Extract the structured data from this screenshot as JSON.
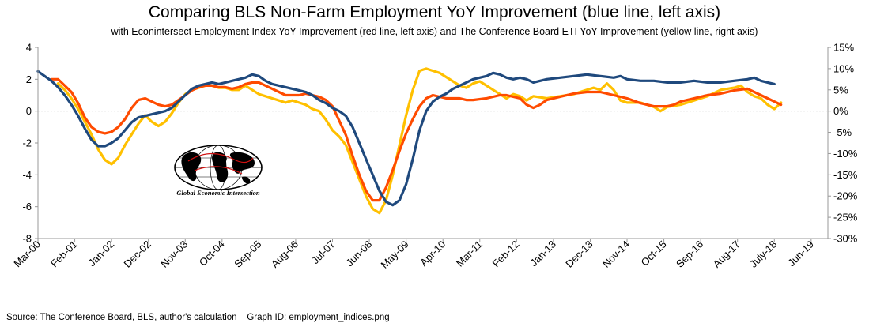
{
  "chart_data": {
    "type": "line",
    "title": "Comparing BLS Non-Farm Employment YoY Improvement (blue line, left axis)",
    "subtitle": "with Econintersect Employment Index YoY Improvement (red line, left axis) and The Conference Board ETI YoY Improvement (yellow line, right axis)",
    "x_tick_labels": [
      "Mar-00",
      "Feb-01",
      "Jan-02",
      "Dec-02",
      "Nov-03",
      "Oct-04",
      "Sep-05",
      "Aug-06",
      "Jul-07",
      "Jun-08",
      "May-09",
      "Apr-10",
      "Mar-11",
      "Feb-12",
      "Jan-13",
      "Dec-13",
      "Nov-14",
      "Oct-15",
      "Sep-16",
      "Aug-17",
      "July-18",
      "Jun-19"
    ],
    "y_left": {
      "ticks": [
        "4",
        "2",
        "0",
        "-2",
        "-4",
        "-6",
        "-8"
      ],
      "lim": [
        -8,
        4
      ]
    },
    "y_right": {
      "ticks": [
        "15%",
        "10%",
        "5%",
        "0%",
        "-5%",
        "-10%",
        "-15%",
        "-20%",
        "-25%",
        "-30%"
      ],
      "lim": [
        -30,
        15
      ]
    },
    "grid": false,
    "zero_line": "dashed",
    "series": [
      {
        "name": "BLS Non-Farm Employment YoY Improvement",
        "axis": "left",
        "color": "#1f497d",
        "points": [
          [
            0,
            2.5
          ],
          [
            2,
            2.2
          ],
          [
            4,
            1.9
          ],
          [
            6,
            1.5
          ],
          [
            8,
            1.0
          ],
          [
            10,
            0.4
          ],
          [
            12,
            -0.3
          ],
          [
            14,
            -1.1
          ],
          [
            16,
            -1.8
          ],
          [
            18,
            -2.2
          ],
          [
            20,
            -2.2
          ],
          [
            22,
            -2.0
          ],
          [
            24,
            -1.7
          ],
          [
            26,
            -1.2
          ],
          [
            28,
            -0.7
          ],
          [
            30,
            -0.4
          ],
          [
            32,
            -0.3
          ],
          [
            34,
            -0.2
          ],
          [
            36,
            -0.1
          ],
          [
            38,
            0.0
          ],
          [
            40,
            0.2
          ],
          [
            42,
            0.6
          ],
          [
            44,
            1.0
          ],
          [
            46,
            1.4
          ],
          [
            48,
            1.6
          ],
          [
            50,
            1.7
          ],
          [
            52,
            1.8
          ],
          [
            54,
            1.7
          ],
          [
            56,
            1.8
          ],
          [
            58,
            1.9
          ],
          [
            60,
            2.0
          ],
          [
            62,
            2.1
          ],
          [
            64,
            2.3
          ],
          [
            66,
            2.2
          ],
          [
            68,
            1.9
          ],
          [
            70,
            1.7
          ],
          [
            72,
            1.6
          ],
          [
            74,
            1.5
          ],
          [
            76,
            1.4
          ],
          [
            78,
            1.3
          ],
          [
            80,
            1.2
          ],
          [
            82,
            1.0
          ],
          [
            84,
            0.7
          ],
          [
            86,
            0.5
          ],
          [
            88,
            0.2
          ],
          [
            90,
            0.0
          ],
          [
            92,
            -0.3
          ],
          [
            94,
            -1.0
          ],
          [
            96,
            -2.0
          ],
          [
            98,
            -3.0
          ],
          [
            100,
            -4.0
          ],
          [
            102,
            -5.0
          ],
          [
            104,
            -5.7
          ],
          [
            106,
            -5.9
          ],
          [
            108,
            -5.6
          ],
          [
            110,
            -4.6
          ],
          [
            112,
            -3.0
          ],
          [
            114,
            -1.2
          ],
          [
            116,
            0.0
          ],
          [
            118,
            0.6
          ],
          [
            120,
            0.9
          ],
          [
            122,
            1.1
          ],
          [
            124,
            1.4
          ],
          [
            126,
            1.6
          ],
          [
            128,
            1.8
          ],
          [
            130,
            2.0
          ],
          [
            134,
            2.2
          ],
          [
            136,
            2.4
          ],
          [
            138,
            2.3
          ],
          [
            140,
            2.1
          ],
          [
            142,
            2.0
          ],
          [
            144,
            2.1
          ],
          [
            146,
            2.0
          ],
          [
            148,
            1.8
          ],
          [
            152,
            2.0
          ],
          [
            156,
            2.1
          ],
          [
            160,
            2.2
          ],
          [
            164,
            2.3
          ],
          [
            168,
            2.2
          ],
          [
            172,
            2.1
          ],
          [
            174,
            2.2
          ],
          [
            176,
            2.0
          ],
          [
            180,
            1.9
          ],
          [
            184,
            1.9
          ],
          [
            188,
            1.8
          ],
          [
            192,
            1.8
          ],
          [
            196,
            1.9
          ],
          [
            200,
            1.8
          ],
          [
            204,
            1.8
          ],
          [
            208,
            1.9
          ],
          [
            212,
            2.0
          ],
          [
            214,
            2.1
          ],
          [
            216,
            1.9
          ],
          [
            218,
            1.8
          ],
          [
            220,
            1.7
          ]
        ]
      },
      {
        "name": "Econintersect Employment Index YoY Improvement",
        "axis": "left",
        "color": "#ff4b00",
        "points": [
          [
            4,
            2.0
          ],
          [
            6,
            2.0
          ],
          [
            8,
            1.6
          ],
          [
            10,
            1.2
          ],
          [
            12,
            0.5
          ],
          [
            14,
            -0.4
          ],
          [
            16,
            -1.0
          ],
          [
            18,
            -1.3
          ],
          [
            20,
            -1.4
          ],
          [
            22,
            -1.3
          ],
          [
            24,
            -1.0
          ],
          [
            26,
            -0.5
          ],
          [
            28,
            0.2
          ],
          [
            30,
            0.7
          ],
          [
            32,
            0.8
          ],
          [
            34,
            0.6
          ],
          [
            36,
            0.4
          ],
          [
            38,
            0.3
          ],
          [
            40,
            0.4
          ],
          [
            42,
            0.7
          ],
          [
            44,
            1.0
          ],
          [
            46,
            1.3
          ],
          [
            48,
            1.5
          ],
          [
            50,
            1.6
          ],
          [
            52,
            1.6
          ],
          [
            54,
            1.5
          ],
          [
            56,
            1.5
          ],
          [
            58,
            1.4
          ],
          [
            60,
            1.5
          ],
          [
            62,
            1.7
          ],
          [
            64,
            1.8
          ],
          [
            66,
            1.8
          ],
          [
            68,
            1.6
          ],
          [
            70,
            1.4
          ],
          [
            72,
            1.2
          ],
          [
            74,
            1.0
          ],
          [
            76,
            1.0
          ],
          [
            78,
            1.0
          ],
          [
            80,
            1.1
          ],
          [
            82,
            1.0
          ],
          [
            84,
            0.9
          ],
          [
            86,
            0.7
          ],
          [
            88,
            0.3
          ],
          [
            90,
            -0.6
          ],
          [
            92,
            -1.5
          ],
          [
            94,
            -2.8
          ],
          [
            96,
            -4.0
          ],
          [
            98,
            -5.0
          ],
          [
            100,
            -5.6
          ],
          [
            102,
            -5.6
          ],
          [
            104,
            -4.8
          ],
          [
            106,
            -3.7
          ],
          [
            108,
            -2.5
          ],
          [
            110,
            -1.4
          ],
          [
            112,
            -0.5
          ],
          [
            114,
            0.3
          ],
          [
            116,
            0.8
          ],
          [
            118,
            1.0
          ],
          [
            120,
            0.9
          ],
          [
            122,
            0.8
          ],
          [
            124,
            0.8
          ],
          [
            126,
            0.8
          ],
          [
            128,
            0.7
          ],
          [
            130,
            0.7
          ],
          [
            134,
            0.8
          ],
          [
            138,
            1.0
          ],
          [
            140,
            1.0
          ],
          [
            142,
            0.9
          ],
          [
            144,
            0.8
          ],
          [
            146,
            0.4
          ],
          [
            148,
            0.2
          ],
          [
            150,
            0.4
          ],
          [
            152,
            0.7
          ],
          [
            156,
            0.9
          ],
          [
            160,
            1.1
          ],
          [
            164,
            1.2
          ],
          [
            168,
            1.2
          ],
          [
            172,
            1.0
          ],
          [
            176,
            0.8
          ],
          [
            180,
            0.5
          ],
          [
            184,
            0.3
          ],
          [
            188,
            0.3
          ],
          [
            190,
            0.4
          ],
          [
            192,
            0.6
          ],
          [
            196,
            0.8
          ],
          [
            200,
            1.0
          ],
          [
            204,
            1.1
          ],
          [
            208,
            1.3
          ],
          [
            212,
            1.4
          ],
          [
            214,
            1.2
          ],
          [
            216,
            1.0
          ],
          [
            218,
            0.8
          ],
          [
            220,
            0.6
          ],
          [
            222,
            0.4
          ]
        ]
      },
      {
        "name": "The Conference Board ETI YoY Improvement",
        "axis": "right",
        "color": "#ffc000",
        "points": [
          [
            6,
            6.5
          ],
          [
            8,
            5.0
          ],
          [
            10,
            3.0
          ],
          [
            12,
            0.5
          ],
          [
            14,
            -2.5
          ],
          [
            16,
            -5.5
          ],
          [
            18,
            -9.0
          ],
          [
            20,
            -11.5
          ],
          [
            22,
            -12.5
          ],
          [
            24,
            -11.0
          ],
          [
            26,
            -8.0
          ],
          [
            28,
            -5.5
          ],
          [
            30,
            -3.0
          ],
          [
            32,
            -1.0
          ],
          [
            34,
            -2.5
          ],
          [
            36,
            -3.5
          ],
          [
            38,
            -2.5
          ],
          [
            40,
            -0.5
          ],
          [
            42,
            2.0
          ],
          [
            44,
            4.0
          ],
          [
            46,
            5.0
          ],
          [
            48,
            5.5
          ],
          [
            50,
            6.0
          ],
          [
            52,
            6.0
          ],
          [
            54,
            5.5
          ],
          [
            56,
            5.5
          ],
          [
            58,
            5.0
          ],
          [
            60,
            5.0
          ],
          [
            62,
            6.0
          ],
          [
            64,
            5.0
          ],
          [
            66,
            4.0
          ],
          [
            68,
            3.5
          ],
          [
            70,
            3.0
          ],
          [
            72,
            2.5
          ],
          [
            74,
            2.0
          ],
          [
            76,
            2.5
          ],
          [
            78,
            2.0
          ],
          [
            80,
            1.5
          ],
          [
            82,
            0.5
          ],
          [
            84,
            0.0
          ],
          [
            86,
            -2.0
          ],
          [
            88,
            -4.5
          ],
          [
            90,
            -6.0
          ],
          [
            92,
            -8.0
          ],
          [
            94,
            -12.0
          ],
          [
            96,
            -16.0
          ],
          [
            98,
            -20.0
          ],
          [
            100,
            -23.0
          ],
          [
            102,
            -24.0
          ],
          [
            104,
            -21.0
          ],
          [
            106,
            -15.0
          ],
          [
            108,
            -8.0
          ],
          [
            110,
            -1.0
          ],
          [
            112,
            5.0
          ],
          [
            114,
            9.5
          ],
          [
            116,
            10.0
          ],
          [
            118,
            9.5
          ],
          [
            120,
            9.0
          ],
          [
            122,
            8.0
          ],
          [
            124,
            7.0
          ],
          [
            126,
            6.0
          ],
          [
            128,
            5.5
          ],
          [
            130,
            6.5
          ],
          [
            132,
            7.0
          ],
          [
            134,
            6.0
          ],
          [
            136,
            5.0
          ],
          [
            138,
            4.0
          ],
          [
            140,
            3.0
          ],
          [
            142,
            4.0
          ],
          [
            144,
            3.5
          ],
          [
            146,
            2.5
          ],
          [
            148,
            3.5
          ],
          [
            152,
            3.0
          ],
          [
            156,
            3.5
          ],
          [
            160,
            4.0
          ],
          [
            164,
            5.0
          ],
          [
            166,
            5.5
          ],
          [
            168,
            5.0
          ],
          [
            170,
            6.5
          ],
          [
            172,
            5.0
          ],
          [
            174,
            2.5
          ],
          [
            176,
            2.0
          ],
          [
            180,
            2.0
          ],
          [
            184,
            1.0
          ],
          [
            186,
            0.0
          ],
          [
            188,
            1.0
          ],
          [
            192,
            1.5
          ],
          [
            196,
            2.5
          ],
          [
            200,
            3.5
          ],
          [
            204,
            5.0
          ],
          [
            208,
            5.5
          ],
          [
            210,
            6.0
          ],
          [
            212,
            4.5
          ],
          [
            214,
            3.5
          ],
          [
            216,
            3.0
          ],
          [
            218,
            1.5
          ],
          [
            220,
            0.5
          ],
          [
            222,
            2.0
          ]
        ]
      }
    ]
  },
  "logo": {
    "caption": "Global Economic Intersection"
  },
  "footer": {
    "source": "Source: The Conference Board, BLS, author's calculation",
    "graph_id": "Graph ID: employment_indices.png"
  }
}
